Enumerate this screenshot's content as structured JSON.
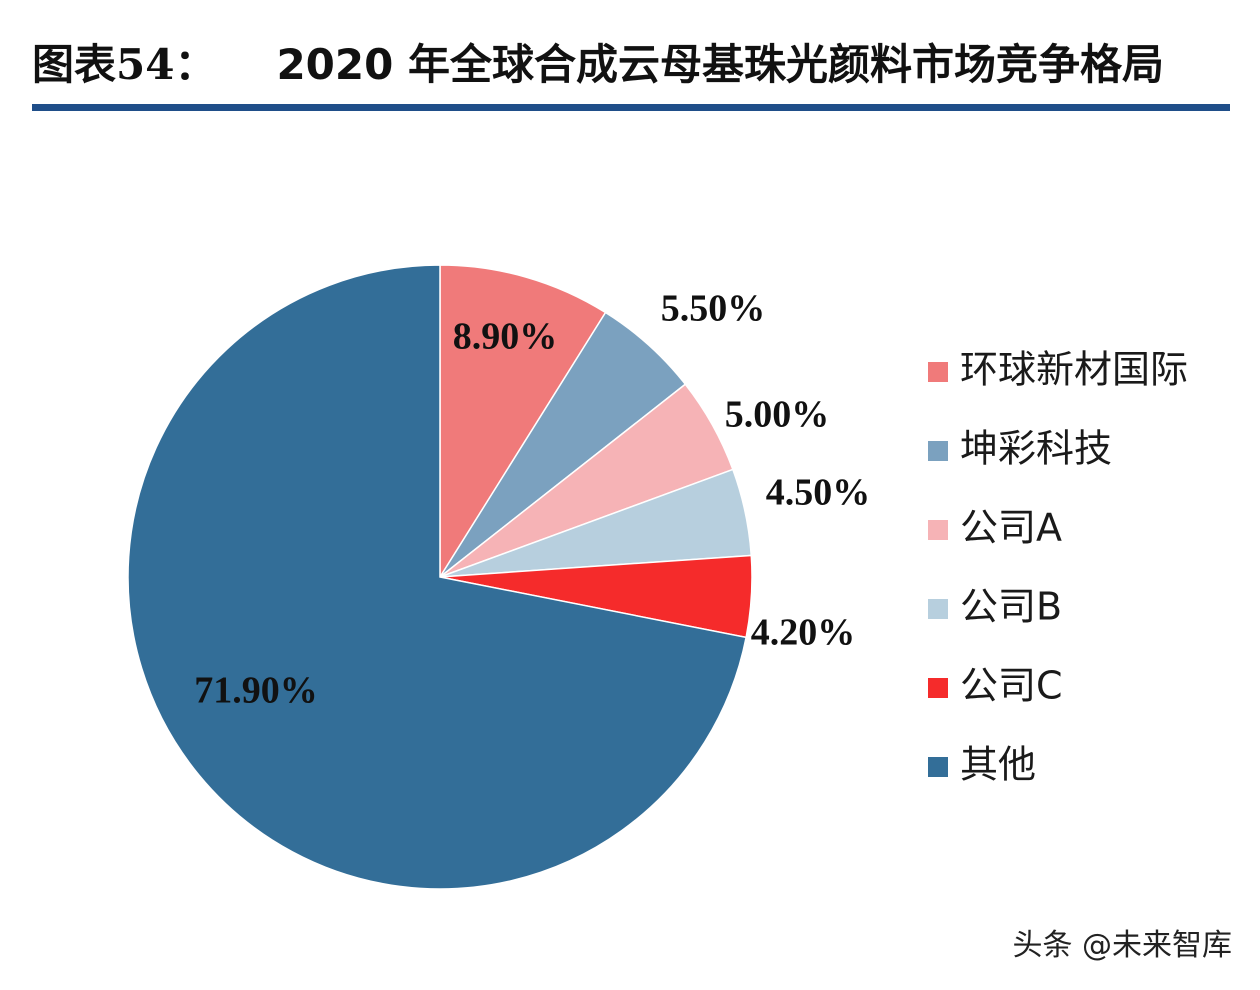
{
  "header": {
    "prefix": "图表54：",
    "title": "2020 年全球合成云母基珠光颜料市场竞争格局"
  },
  "watermark": "头条 @未来智库",
  "chart_data": {
    "type": "pie",
    "title": "2020 年全球合成云母基珠光颜料市场竞争格局",
    "start_angle_deg": 0,
    "direction": "clockwise",
    "legend_position": "right",
    "slices": [
      {
        "name": "环球新材国际",
        "value": 8.9,
        "label": "8.90%",
        "color": "#f07a7a"
      },
      {
        "name": "坤彩科技",
        "value": 5.5,
        "label": "5.50%",
        "color": "#7ba1bf"
      },
      {
        "name": "公司A",
        "value": 5.0,
        "label": "5.00%",
        "color": "#f6b3b6"
      },
      {
        "name": "公司B",
        "value": 4.5,
        "label": "4.50%",
        "color": "#b7cfde"
      },
      {
        "name": "公司C",
        "value": 4.2,
        "label": "4.20%",
        "color": "#f52b2b"
      },
      {
        "name": "其他",
        "value": 71.9,
        "label": "71.90%",
        "color": "#336e98"
      }
    ]
  }
}
